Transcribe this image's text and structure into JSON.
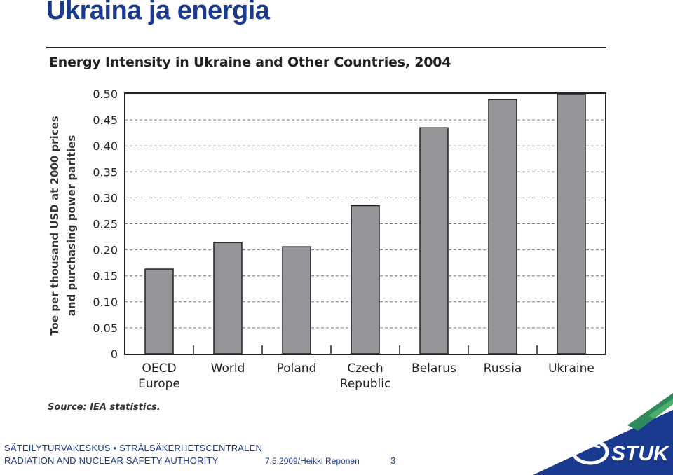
{
  "slide": {
    "title": "Ukraina ja energia"
  },
  "chart_data": {
    "type": "bar",
    "title": "Energy Intensity in Ukraine and Other Countries, 2004",
    "ylabel_line1": "Toe per thousand USD at 2000 prices",
    "ylabel_line2": "and purchasing power parities",
    "xlabel": "",
    "categories": [
      [
        "OECD",
        "Europe"
      ],
      [
        "World"
      ],
      [
        "Poland"
      ],
      [
        "Czech",
        "Republic"
      ],
      [
        "Belarus"
      ],
      [
        "Russia"
      ],
      [
        "Ukraine"
      ]
    ],
    "values": [
      0.163,
      0.214,
      0.206,
      0.285,
      0.435,
      0.489,
      0.5
    ],
    "ylim": [
      0,
      0.5
    ],
    "yticks": [
      "0",
      "0.05",
      "0.10",
      "0.15",
      "0.20",
      "0.25",
      "0.30",
      "0.35",
      "0.40",
      "0.45",
      "0.50"
    ],
    "grid": "dashed horizontal",
    "bar_color": "#939598",
    "source": "Source: IEA statistics."
  },
  "footer": {
    "org_line1": "SÄTEILYTURVAKESKUS • STRÅLSÄKERHETSCENTRALEN",
    "org_line2": "RADIATION AND NUCLEAR SAFETY AUTHORITY",
    "date_author": "7.5.2009/Heikki Reponen",
    "page": "3",
    "logo_text": "STUK",
    "brand_color": "#1a3a8f",
    "accent_color": "#2e8a5a"
  }
}
